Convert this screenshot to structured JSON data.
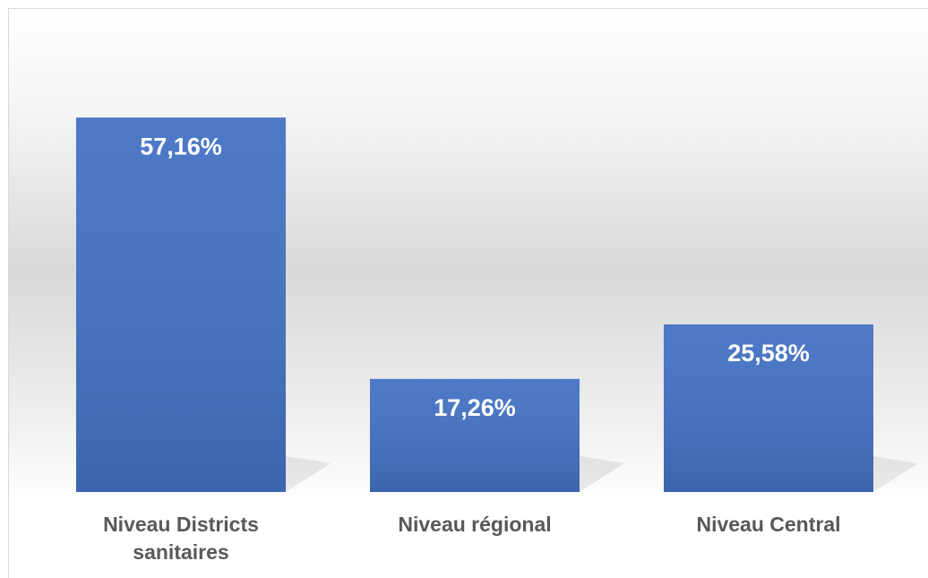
{
  "chart_data": {
    "type": "bar",
    "categories": [
      "Niveau Districts sanitaires",
      "Niveau régional",
      "Niveau Central"
    ],
    "values": [
      57.16,
      17.26,
      25.58
    ],
    "value_labels": [
      "57,16%",
      "17,26%",
      "25,58%"
    ],
    "color": "#4472c4"
  }
}
